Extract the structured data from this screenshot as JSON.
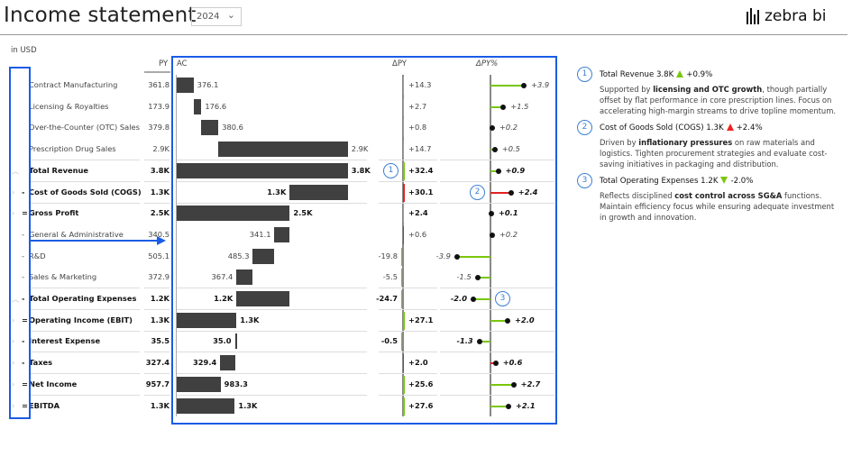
{
  "header": {
    "title": "Income statement",
    "year": "2024",
    "logo": "zebra bi",
    "unit": "in USD"
  },
  "columns": {
    "py": "PY",
    "ac": "AC",
    "dpy": "ΔPY",
    "dpy_pct": "ΔPY%"
  },
  "colors": {
    "bar": "#404040",
    "positive": "#7ac70c",
    "negative": "#e22222",
    "accent": "#1a5ce6",
    "badge": "#3d7fd6"
  },
  "rows": [
    {
      "label": "Contract Manufacturing",
      "op": "",
      "chev": "",
      "bold": false,
      "py": "361.8",
      "ac": "376.1",
      "ac_value": 376.1,
      "kind": "add",
      "dpy": "+14.3",
      "dpy_value": 14.3,
      "pct": "+3.9",
      "pct_value": 3.9,
      "good": true
    },
    {
      "label": "Licensing & Royalties",
      "op": "",
      "chev": "",
      "bold": false,
      "py": "173.9",
      "ac": "176.6",
      "ac_value": 176.6,
      "kind": "add",
      "dpy": "+2.7",
      "dpy_value": 2.7,
      "pct": "+1.5",
      "pct_value": 1.5,
      "good": true
    },
    {
      "label": "Over-the-Counter (OTC) Sales",
      "op": "",
      "chev": "",
      "bold": false,
      "py": "379.8",
      "ac": "380.6",
      "ac_value": 380.6,
      "kind": "add",
      "dpy": "+0.8",
      "dpy_value": 0.8,
      "pct": "+0.2",
      "pct_value": 0.2,
      "good": true
    },
    {
      "label": "Prescription Drug Sales",
      "op": "",
      "chev": "",
      "bold": false,
      "py": "2.9K",
      "ac": "2.9K",
      "ac_value": 2900,
      "kind": "add",
      "dpy": "+14.7",
      "dpy_value": 14.7,
      "pct": "+0.5",
      "pct_value": 0.5,
      "good": true,
      "sep": true
    },
    {
      "label": "Total Revenue",
      "op": "",
      "chev": "^",
      "bold": true,
      "py": "3.8K",
      "ac": "3.8K",
      "ac_value": 3833,
      "kind": "total",
      "dpy": "+32.4",
      "dpy_value": 32.4,
      "pct": "+0.9",
      "pct_value": 0.9,
      "good": true,
      "sep": true,
      "badge_dpy": "1"
    },
    {
      "label": "Cost of Goods Sold (COGS)",
      "op": "-",
      "chev": ">",
      "bold": true,
      "py": "1.3K",
      "ac": "1.3K",
      "ac_value": 1300,
      "kind": "sub",
      "dpy": "+30.1",
      "dpy_value": 30.1,
      "pct": "+2.4",
      "pct_value": 2.4,
      "good": false,
      "sep": true,
      "badge_pct": "2"
    },
    {
      "label": "Gross Profit",
      "op": "=",
      "chev": ">",
      "bold": true,
      "py": "2.5K",
      "ac": "2.5K",
      "ac_value": 2533,
      "kind": "total",
      "dpy": "+2.4",
      "dpy_value": 2.4,
      "pct": "+0.1",
      "pct_value": 0.1,
      "good": true
    },
    {
      "label": "General & Administrative",
      "op": "-",
      "chev": "",
      "bold": false,
      "py": "340.5",
      "ac": "341.1",
      "ac_value": 341.1,
      "kind": "sub",
      "dpy": "+0.6",
      "dpy_value": 0.6,
      "pct": "+0.2",
      "pct_value": 0.2,
      "good": false
    },
    {
      "label": "R&D",
      "op": "-",
      "chev": "",
      "bold": false,
      "py": "505.1",
      "ac": "485.3",
      "ac_value": 485.3,
      "kind": "sub",
      "dpy": "-19.8",
      "dpy_value": -19.8,
      "pct": "-3.9",
      "pct_value": -3.9,
      "good": true
    },
    {
      "label": "Sales & Marketing",
      "op": "-",
      "chev": "",
      "bold": false,
      "py": "372.9",
      "ac": "367.4",
      "ac_value": 367.4,
      "kind": "sub",
      "dpy": "-5.5",
      "dpy_value": -5.5,
      "pct": "-1.5",
      "pct_value": -1.5,
      "good": true,
      "sep": true
    },
    {
      "label": "Total Operating Expenses",
      "op": "-",
      "chev": "^",
      "bold": true,
      "py": "1.2K",
      "ac": "1.2K",
      "ac_value": 1194,
      "kind": "subtotal",
      "dpy": "-24.7",
      "dpy_value": -24.7,
      "pct": "-2.0",
      "pct_value": -2.0,
      "good": true,
      "sep": true,
      "badge_pct_right": "3"
    },
    {
      "label": "Operating Income (EBIT)",
      "op": "=",
      "chev": ">",
      "bold": true,
      "py": "1.3K",
      "ac": "1.3K",
      "ac_value": 1339,
      "kind": "total",
      "dpy": "+27.1",
      "dpy_value": 27.1,
      "pct": "+2.0",
      "pct_value": 2.0,
      "good": true,
      "sep": true
    },
    {
      "label": "Interest Expense",
      "op": "-",
      "chev": ">",
      "bold": true,
      "py": "35.5",
      "ac": "35.0",
      "ac_value": 35,
      "kind": "sub",
      "dpy": "-0.5",
      "dpy_value": -0.5,
      "pct": "-1.3",
      "pct_value": -1.3,
      "good": true,
      "sep": true
    },
    {
      "label": "Taxes",
      "op": "-",
      "chev": ">",
      "bold": true,
      "py": "327.4",
      "ac": "329.4",
      "ac_value": 329.4,
      "kind": "sub",
      "dpy": "+2.0",
      "dpy_value": 2.0,
      "pct": "+0.6",
      "pct_value": 0.6,
      "good": false,
      "sep": true
    },
    {
      "label": "Net Income",
      "op": "=",
      "chev": ">",
      "bold": true,
      "py": "957.7",
      "ac": "983.3",
      "ac_value": 983.3,
      "kind": "total",
      "dpy": "+25.6",
      "dpy_value": 25.6,
      "pct": "+2.7",
      "pct_value": 2.7,
      "good": true,
      "sep": true
    },
    {
      "label": "EBITDA",
      "op": "=",
      "chev": ">",
      "bold": true,
      "py": "1.3K",
      "ac": "1.3K",
      "ac_value": 1300,
      "kind": "total",
      "dpy": "+27.6",
      "dpy_value": 27.6,
      "pct": "+2.1",
      "pct_value": 2.1,
      "good": true
    }
  ],
  "comments": [
    {
      "num": "1",
      "title": "Total Revenue 3.8K",
      "trend": "up",
      "trend_color": "green",
      "change": "+0.9%",
      "pre": "Supported by ",
      "bold": "licensing and OTC growth",
      "post": ", though partially offset by flat performance in core prescription lines. Focus on accelerating high-margin streams to drive topline momentum."
    },
    {
      "num": "2",
      "title": "Cost of Goods Sold (COGS) 1.3K",
      "trend": "up",
      "trend_color": "red",
      "change": "+2.4%",
      "pre": "Driven by ",
      "bold": "inflationary pressures",
      "post": " on raw materials and logistics. Tighten procurement strategies and evaluate cost-saving initiatives in packaging and distribution."
    },
    {
      "num": "3",
      "title": "Total Operating Expenses 1.2K",
      "trend": "down",
      "trend_color": "green",
      "change": "-2.0%",
      "pre": "Reflects disciplined ",
      "bold": "cost control across SG&A",
      "post": " functions. Maintain efficiency focus while ensuring adequate investment in growth and innovation."
    }
  ]
}
